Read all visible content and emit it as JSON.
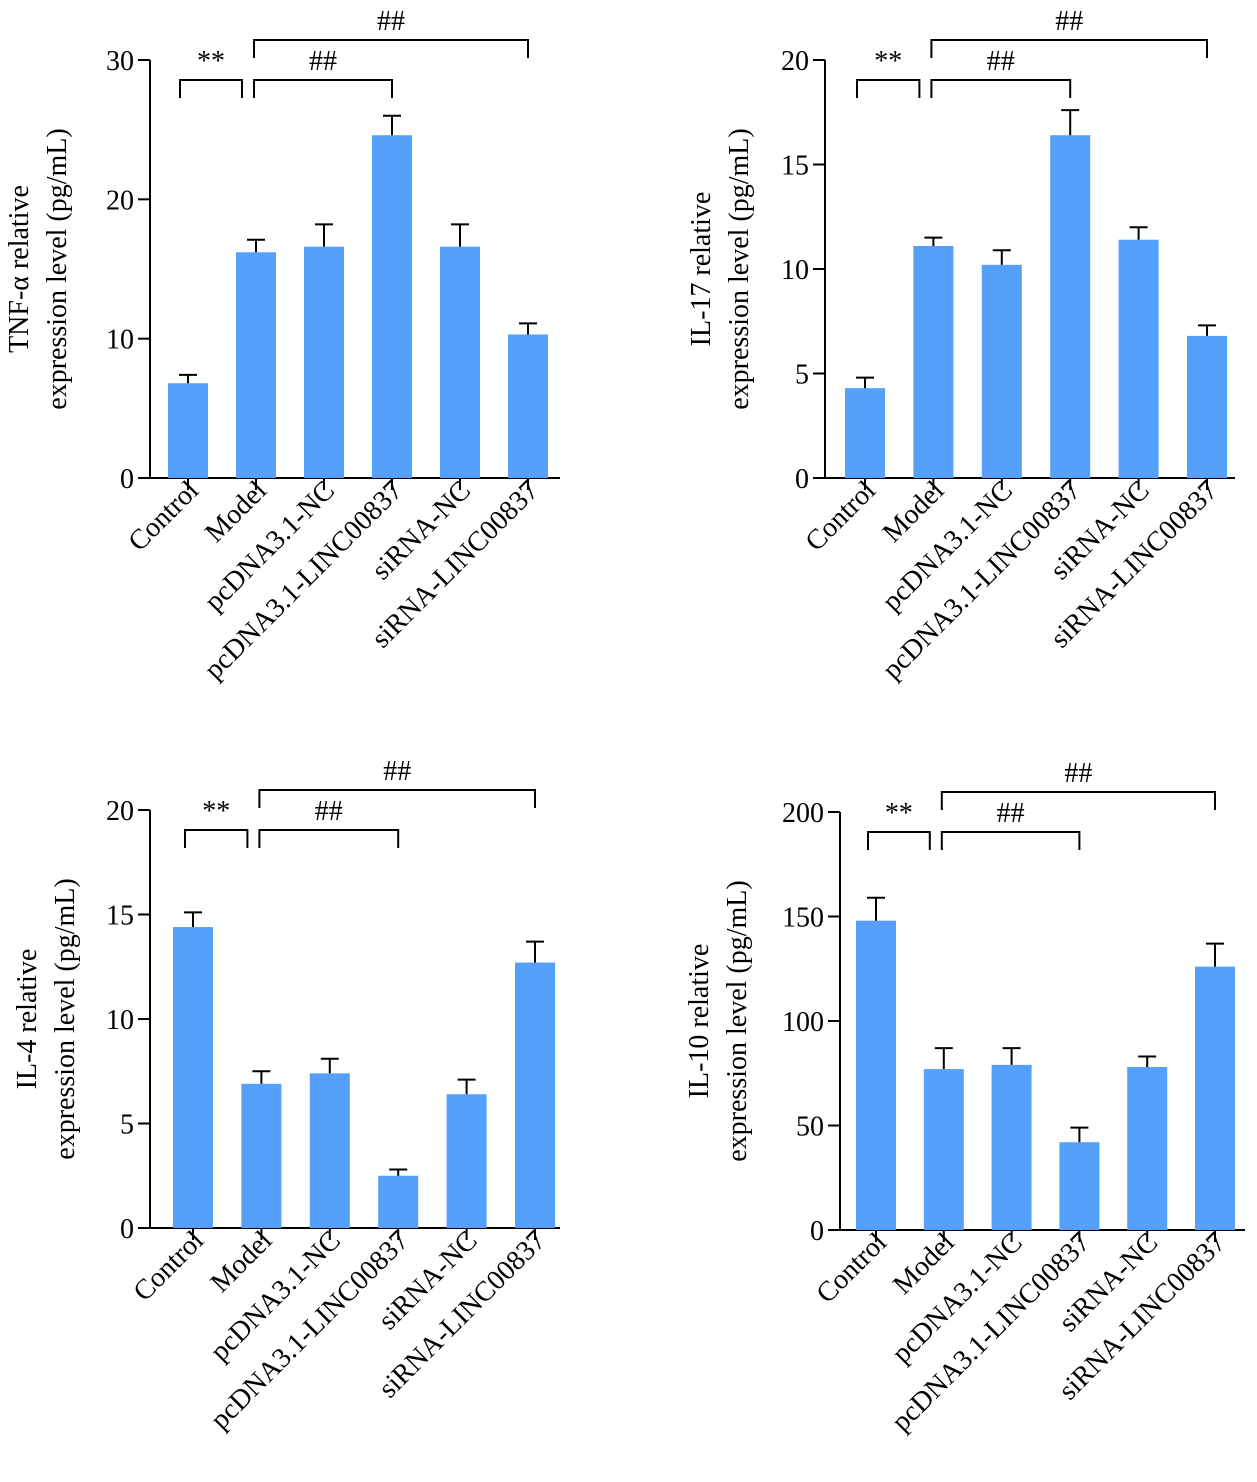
{
  "chart_data": [
    {
      "type": "bar",
      "categories": [
        "Control",
        "Model",
        "pcDNA3.1-NC",
        "pcDNA3.1-LINC00837",
        "siRNA-NC",
        "siRNA-LINC00837"
      ],
      "values": [
        6.8,
        16.2,
        16.6,
        24.6,
        16.6,
        10.3
      ],
      "errors": [
        0.6,
        0.9,
        1.6,
        1.4,
        1.6,
        0.8
      ],
      "title": "",
      "xlabel": "",
      "ylabel": [
        "TNF-α relative",
        "expression level (pg/mL)"
      ],
      "ylim": [
        0,
        30
      ],
      "yticks": [
        0,
        10,
        20,
        30
      ],
      "grid": false,
      "bar_color": "#55a0fb",
      "significance": [
        {
          "from": 0,
          "to": 1,
          "label": "**",
          "level": 1
        },
        {
          "from": 1,
          "to": 3,
          "label": "##",
          "level": 1
        },
        {
          "from": 1,
          "to": 5,
          "label": "##",
          "level": 2
        }
      ]
    },
    {
      "type": "bar",
      "categories": [
        "Control",
        "Model",
        "pcDNA3.1-NC",
        "pcDNA3.1-LINC00837",
        "siRNA-NC",
        "siRNA-LINC00837"
      ],
      "values": [
        4.3,
        11.1,
        10.2,
        16.4,
        11.4,
        6.8
      ],
      "errors": [
        0.5,
        0.4,
        0.7,
        1.2,
        0.6,
        0.5
      ],
      "title": "",
      "xlabel": "",
      "ylabel": [
        "IL-17 relative",
        "expression level (pg/mL)"
      ],
      "ylim": [
        0,
        20
      ],
      "yticks": [
        0,
        5,
        10,
        15,
        20
      ],
      "grid": false,
      "bar_color": "#55a0fb",
      "significance": [
        {
          "from": 0,
          "to": 1,
          "label": "**",
          "level": 1
        },
        {
          "from": 1,
          "to": 3,
          "label": "##",
          "level": 1
        },
        {
          "from": 1,
          "to": 5,
          "label": "##",
          "level": 2
        }
      ]
    },
    {
      "type": "bar",
      "categories": [
        "Control",
        "Model",
        "pcDNA3.1-NC",
        "pcDNA3.1-LINC00837",
        "siRNA-NC",
        "siRNA-LINC00837"
      ],
      "values": [
        14.4,
        6.9,
        7.4,
        2.5,
        6.4,
        12.7
      ],
      "errors": [
        0.7,
        0.6,
        0.7,
        0.3,
        0.7,
        1.0
      ],
      "title": "",
      "xlabel": "",
      "ylabel": [
        "IL-4 relative",
        "expression level (pg/mL)"
      ],
      "ylim": [
        0,
        20
      ],
      "yticks": [
        0,
        5,
        10,
        15,
        20
      ],
      "grid": false,
      "bar_color": "#55a0fb",
      "significance": [
        {
          "from": 0,
          "to": 1,
          "label": "**",
          "level": 1
        },
        {
          "from": 1,
          "to": 3,
          "label": "##",
          "level": 1
        },
        {
          "from": 1,
          "to": 5,
          "label": "##",
          "level": 2
        }
      ]
    },
    {
      "type": "bar",
      "categories": [
        "Control",
        "Model",
        "pcDNA3.1-NC",
        "pcDNA3.1-LINC00837",
        "siRNA-NC",
        "siRNA-LINC00837"
      ],
      "values": [
        148,
        77,
        79,
        42,
        78,
        126
      ],
      "errors": [
        11,
        10,
        8,
        7,
        5,
        11
      ],
      "title": "",
      "xlabel": "",
      "ylabel": [
        "IL-10 relative",
        "expression level (pg/mL)"
      ],
      "ylim": [
        0,
        200
      ],
      "yticks": [
        0,
        50,
        100,
        150,
        200
      ],
      "grid": false,
      "bar_color": "#55a0fb",
      "significance": [
        {
          "from": 0,
          "to": 1,
          "label": "**",
          "level": 1
        },
        {
          "from": 1,
          "to": 3,
          "label": "##",
          "level": 1
        },
        {
          "from": 1,
          "to": 5,
          "label": "##",
          "level": 2
        }
      ]
    }
  ]
}
